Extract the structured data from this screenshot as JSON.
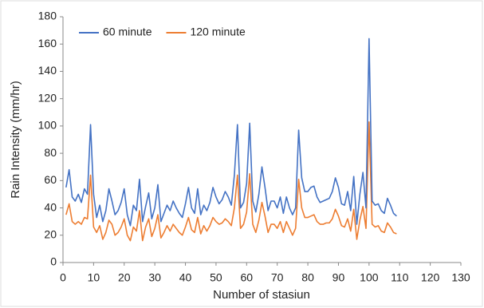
{
  "chart_data": {
    "type": "line",
    "xlabel": "Number of stasiun",
    "ylabel": "Rain Intensity (mm/hr)",
    "x": [
      1,
      2,
      3,
      4,
      5,
      6,
      7,
      8,
      9,
      10,
      11,
      12,
      13,
      14,
      15,
      16,
      17,
      18,
      19,
      20,
      21,
      22,
      23,
      24,
      25,
      26,
      27,
      28,
      29,
      30,
      31,
      32,
      33,
      34,
      35,
      36,
      37,
      38,
      39,
      40,
      41,
      42,
      43,
      44,
      45,
      46,
      47,
      48,
      49,
      50,
      51,
      52,
      53,
      54,
      55,
      56,
      57,
      58,
      59,
      60,
      61,
      62,
      63,
      64,
      65,
      66,
      67,
      68,
      69,
      70,
      71,
      72,
      73,
      74,
      75,
      76,
      77,
      78,
      79,
      80,
      81,
      82,
      83,
      84,
      85,
      86,
      87,
      88,
      89,
      90,
      91,
      92,
      93,
      94,
      95,
      96,
      97,
      98,
      99,
      100,
      101,
      102,
      103,
      104,
      105,
      106,
      107,
      108,
      109
    ],
    "series": [
      {
        "name": "60 minute",
        "color": "#4472c4",
        "values": [
          55,
          68,
          48,
          45,
          50,
          44,
          54,
          50,
          101,
          50,
          33,
          42,
          30,
          38,
          54,
          45,
          35,
          38,
          44,
          54,
          35,
          27,
          42,
          38,
          61,
          30,
          41,
          51,
          32,
          40,
          57,
          30,
          36,
          42,
          38,
          45,
          40,
          36,
          33,
          43,
          55,
          40,
          36,
          54,
          35,
          42,
          38,
          44,
          55,
          48,
          43,
          46,
          52,
          48,
          42,
          64,
          101,
          40,
          44,
          58,
          102,
          45,
          37,
          50,
          70,
          55,
          38,
          45,
          45,
          40,
          48,
          36,
          48,
          40,
          35,
          40,
          97,
          62,
          52,
          52,
          55,
          56,
          48,
          44,
          45,
          46,
          47,
          52,
          62,
          55,
          43,
          42,
          52,
          38,
          63,
          28,
          50,
          66,
          40,
          164,
          45,
          42,
          43,
          38,
          36,
          47,
          42,
          36,
          34
        ]
      },
      {
        "name": "120 minute",
        "color": "#ed7d31",
        "values": [
          35,
          43,
          30,
          28,
          30,
          28,
          33,
          32,
          64,
          26,
          22,
          27,
          17,
          22,
          31,
          28,
          20,
          22,
          26,
          32,
          20,
          16,
          26,
          23,
          38,
          16,
          26,
          32,
          19,
          25,
          35,
          18,
          22,
          27,
          23,
          28,
          25,
          22,
          20,
          26,
          33,
          24,
          22,
          33,
          21,
          27,
          23,
          27,
          33,
          30,
          28,
          29,
          32,
          30,
          27,
          40,
          64,
          25,
          28,
          37,
          65,
          28,
          22,
          31,
          44,
          34,
          22,
          28,
          28,
          25,
          30,
          22,
          30,
          25,
          20,
          25,
          61,
          40,
          33,
          33,
          34,
          35,
          30,
          28,
          28,
          29,
          29,
          32,
          39,
          34,
          27,
          26,
          32,
          23,
          39,
          17,
          31,
          41,
          25,
          103,
          28,
          26,
          27,
          23,
          22,
          29,
          26,
          22,
          21
        ]
      }
    ],
    "xlim": [
      0,
      130
    ],
    "xticks": [
      0,
      10,
      20,
      30,
      40,
      50,
      60,
      70,
      80,
      90,
      100,
      110,
      120,
      130
    ],
    "ylim": [
      0,
      180
    ],
    "yticks": [
      0,
      20,
      40,
      60,
      80,
      100,
      120,
      140,
      160,
      180
    ],
    "grid": false,
    "legend": "top-left"
  }
}
